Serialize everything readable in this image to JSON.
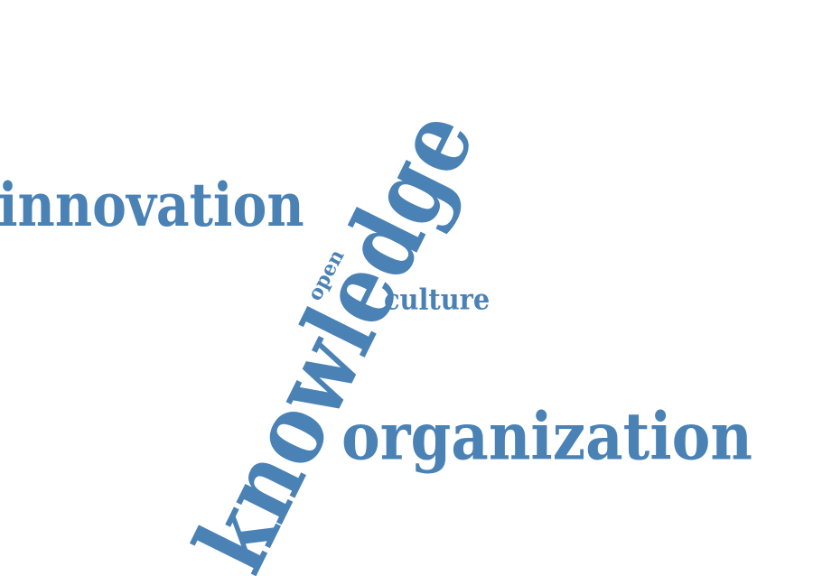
{
  "colors": {
    "text": "#4a82b5",
    "background": "#ffffff"
  },
  "words": {
    "innovation": "innovation",
    "organization": "organization",
    "culture": "culture",
    "open": "open",
    "knowledge": "knowledge"
  }
}
